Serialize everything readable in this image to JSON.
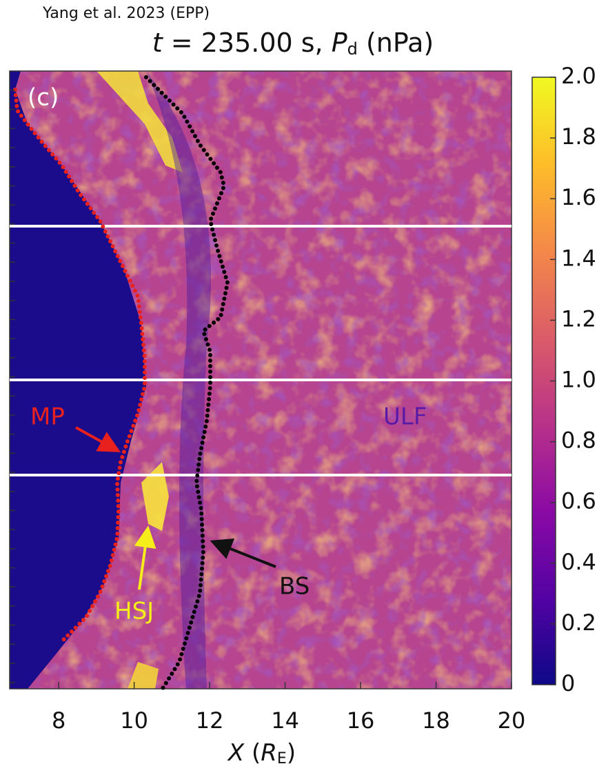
{
  "source": "Yang et al. 2023 (EPP)",
  "chart_data": {
    "type": "heatmap",
    "title_parts": [
      "t",
      " = 235.00 s, ",
      "P",
      "d",
      " (nPa)"
    ],
    "x_label_parts": [
      "X",
      " (",
      "R",
      "E",
      ")"
    ],
    "xlim": [
      6.7,
      20
    ],
    "xticks": [
      8,
      10,
      12,
      14,
      16,
      18,
      20
    ],
    "colormap": "plasma",
    "clim": [
      0,
      2
    ],
    "cticks": [
      0,
      0.2,
      0.4,
      0.6,
      0.8,
      {
        "value": 1,
        "label": "1.0"
      },
      1.2,
      1.4,
      1.6,
      1.8,
      {
        "value": 2,
        "label": "2.0"
      }
    ],
    "annotations": [
      "(c)",
      "MP",
      "ULF",
      "HSJ",
      "BS"
    ]
  }
}
